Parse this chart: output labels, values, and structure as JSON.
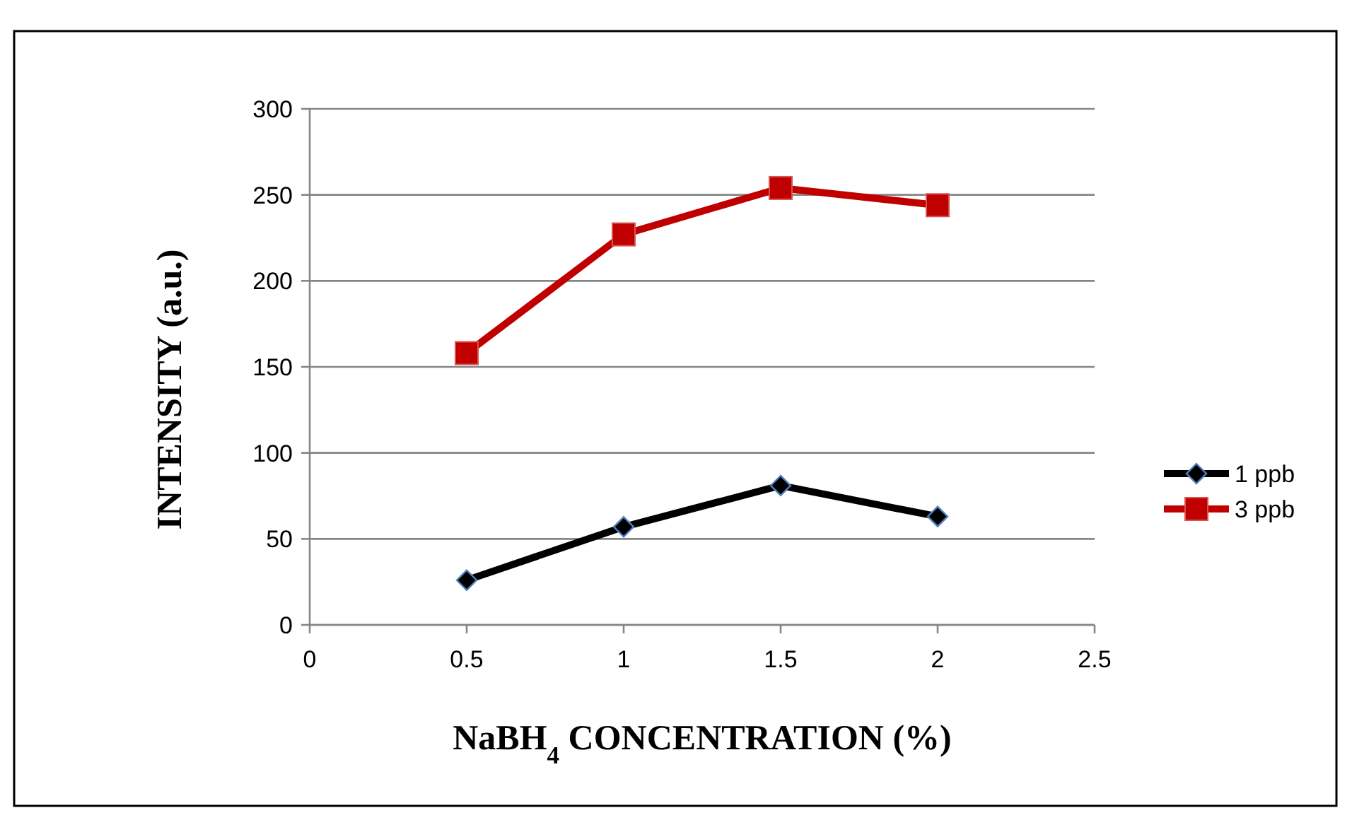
{
  "chart_data": {
    "type": "line",
    "xlabel": "NaBH$_{4}$ CONCENTRATION (%)",
    "ylabel": "INTENSITY (a.u.)",
    "x": [
      0.5,
      1,
      1.5,
      2
    ],
    "series": [
      {
        "name": "1 ppb",
        "color": "#000000",
        "marker": "diamond",
        "values": [
          26,
          57,
          81,
          63
        ]
      },
      {
        "name": "3 ppb",
        "color": "#c00000",
        "marker": "square",
        "values": [
          158,
          227,
          254,
          244
        ]
      }
    ],
    "xlim": [
      0,
      2.5
    ],
    "xticks": [
      0,
      0.5,
      1,
      1.5,
      2,
      2.5
    ],
    "ylim": [
      0,
      300
    ],
    "yticks": [
      0,
      50,
      100,
      150,
      200,
      250,
      300
    ],
    "grid": "y",
    "legend": "right",
    "line_style": "solid"
  }
}
